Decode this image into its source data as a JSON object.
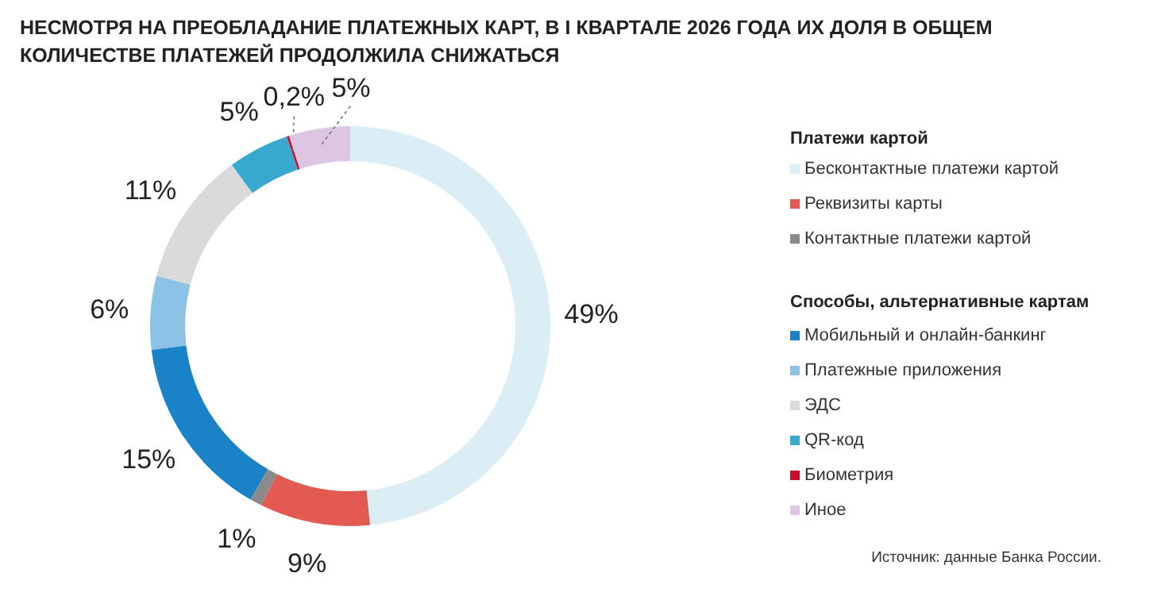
{
  "chart_data": {
    "type": "donut",
    "title": "НЕСМОТРЯ НА ПРЕОБЛАДАНИЕ ПЛАТЕЖНЫХ КАРТ, В I КВАРТАЛЕ 2026 ГОДА ИХ ДОЛЯ В ОБЩЕМ\nКОЛИЧЕСТВЕ ПЛАТЕЖЕЙ ПРОДОЛЖИЛА СНИЖАТЬСЯ",
    "categories": [
      "Бесконтактные платежи картой",
      "Реквизиты карты",
      "Контактные платежи картой",
      "Мобильный и онлайн-банкинг",
      "Платежные приложения",
      "ЭДС",
      "QR-код",
      "Биометрия",
      "Иное"
    ],
    "values": [
      49,
      9,
      1,
      15,
      6,
      11,
      5,
      0.2,
      5
    ],
    "colors": [
      "#dbeef6",
      "#e25a52",
      "#8a8a8a",
      "#1a82c6",
      "#8cc2e6",
      "#dadada",
      "#3aa9cf",
      "#c8102e",
      "#dcc6e3"
    ],
    "value_labels": [
      "49%",
      "9%",
      "1%",
      "15%",
      "6%",
      "11%",
      "5%",
      "0,2%",
      "5%"
    ],
    "legend": "right",
    "annotations": [
      "Платежи картой",
      "Способы, альтернативные картам",
      "Источник: данные Банка России."
    ]
  }
}
